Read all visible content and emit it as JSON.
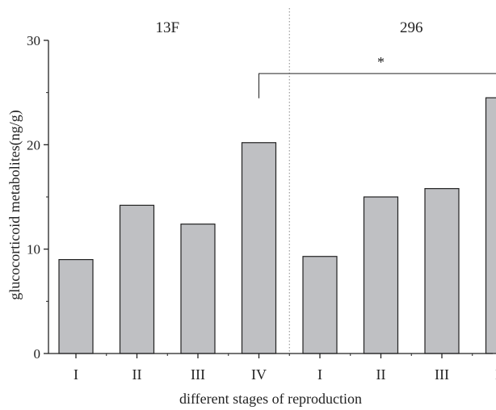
{
  "chart_data": {
    "type": "bar",
    "title": "",
    "xlabel": "different stages of reproduction",
    "ylabel": "glucocorticoid metabolites(ng/g)",
    "ylim": [
      0,
      30
    ],
    "yticks": [
      0,
      10,
      20,
      30
    ],
    "groups": [
      {
        "name": "13F",
        "categories": [
          "I",
          "II",
          "III",
          "IV"
        ],
        "values": [
          9.0,
          14.2,
          12.4,
          20.2
        ]
      },
      {
        "name": "296",
        "categories": [
          "I",
          "II",
          "III",
          "IV"
        ],
        "values": [
          9.3,
          15.0,
          15.8,
          24.5
        ]
      }
    ],
    "annotations": [
      {
        "text": "*",
        "from": "13F IV",
        "to": "296 IV"
      }
    ],
    "grid": false,
    "legend": "none",
    "colors": {
      "bar_fill": "#bfc0c3",
      "bar_stroke": "#222222",
      "axis": "#222222",
      "separator": "#888888",
      "text": "#222222"
    }
  }
}
